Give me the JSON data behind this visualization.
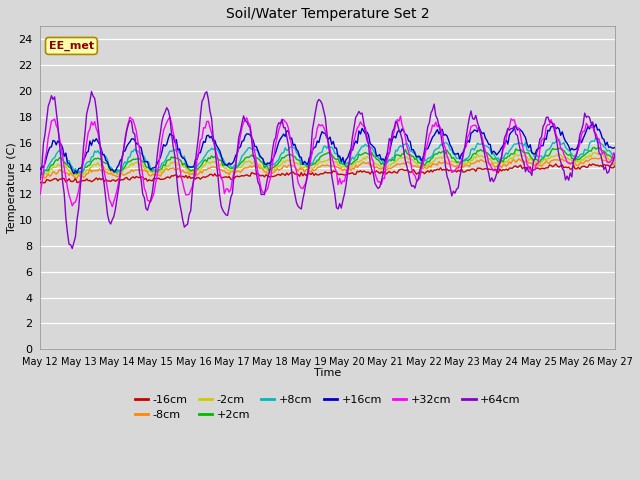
{
  "title": "Soil/Water Temperature Set 2",
  "xlabel": "Time",
  "ylabel": "Temperature (C)",
  "annotation": "EE_met",
  "ylim": [
    0,
    25
  ],
  "yticks": [
    0,
    2,
    4,
    6,
    8,
    10,
    12,
    14,
    16,
    18,
    20,
    22,
    24
  ],
  "x_labels": [
    "May 12",
    "May 13",
    "May 14",
    "May 15",
    "May 16",
    "May 17",
    "May 18",
    "May 19",
    "May 20",
    "May 21",
    "May 22",
    "May 23",
    "May 24",
    "May 25",
    "May 26",
    "May 27"
  ],
  "series_labels": [
    "-16cm",
    "-8cm",
    "-2cm",
    "+2cm",
    "+8cm",
    "+16cm",
    "+32cm",
    "+64cm"
  ],
  "series_colors": [
    "#cc0000",
    "#ff8800",
    "#cccc00",
    "#00bb00",
    "#00bbbb",
    "#0000cc",
    "#ff00ff",
    "#8800cc"
  ],
  "legend_row1": [
    "-16cm",
    "-8cm",
    "-2cm",
    "+2cm",
    "+8cm",
    "+16cm"
  ],
  "legend_row1_colors": [
    "#cc0000",
    "#ff8800",
    "#cccc00",
    "#00bb00",
    "#00bbbb",
    "#0000cc"
  ],
  "legend_row2": [
    "+32cm",
    "+64cm"
  ],
  "legend_row2_colors": [
    "#ff00ff",
    "#8800cc"
  ],
  "bg_color": "#d8d8d8",
  "plot_bg_color": "#d8d8d8",
  "grid_color": "#ffffff",
  "n_days": 15,
  "n_pts_per_day": 24
}
